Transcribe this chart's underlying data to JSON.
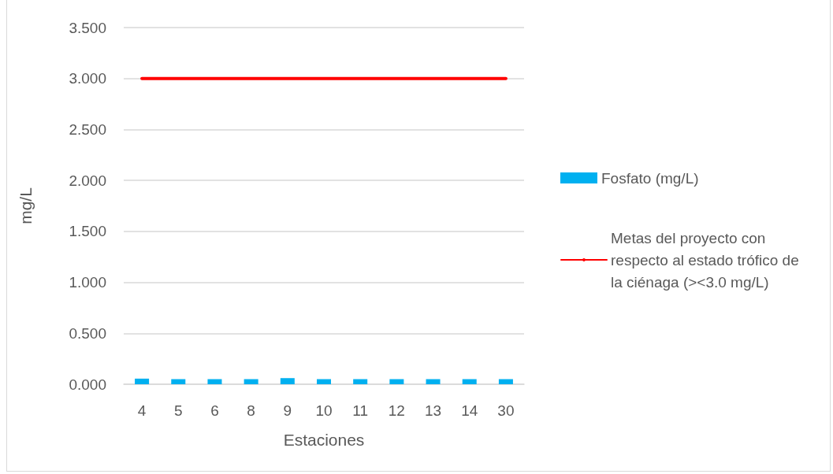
{
  "chart_data": {
    "type": "bar",
    "xlabel": "Estaciones",
    "ylabel": "mg/L",
    "categories": [
      "4",
      "5",
      "6",
      "8",
      "9",
      "10",
      "11",
      "12",
      "13",
      "14",
      "30"
    ],
    "series": [
      {
        "name": "Fosfato (mg/L)",
        "color": "#00b0f0",
        "values": [
          0.055,
          0.05,
          0.05,
          0.05,
          0.06,
          0.05,
          0.05,
          0.05,
          0.05,
          0.05,
          0.05
        ]
      },
      {
        "name": "Metas del proyecto con respecto al estado trófico de la ciénaga (><3.0 mg/L)",
        "type": "line",
        "color": "#ff0000",
        "values": [
          3,
          3,
          3,
          3,
          3,
          3,
          3,
          3,
          3,
          3,
          3
        ]
      }
    ],
    "ylim": [
      0,
      3.5
    ],
    "yticks": [
      {
        "value": 0,
        "label": "0.000"
      },
      {
        "value": 0.5,
        "label": "0.500"
      },
      {
        "value": 1,
        "label": "1.000"
      },
      {
        "value": 1.5,
        "label": "1.500"
      },
      {
        "value": 2,
        "label": "2.000"
      },
      {
        "value": 2.5,
        "label": "2.500"
      },
      {
        "value": 3,
        "label": "3.000"
      },
      {
        "value": 3.5,
        "label": "3.500"
      }
    ],
    "grid": "y",
    "legend": "right",
    "marker": "none",
    "line_style": "solid"
  }
}
